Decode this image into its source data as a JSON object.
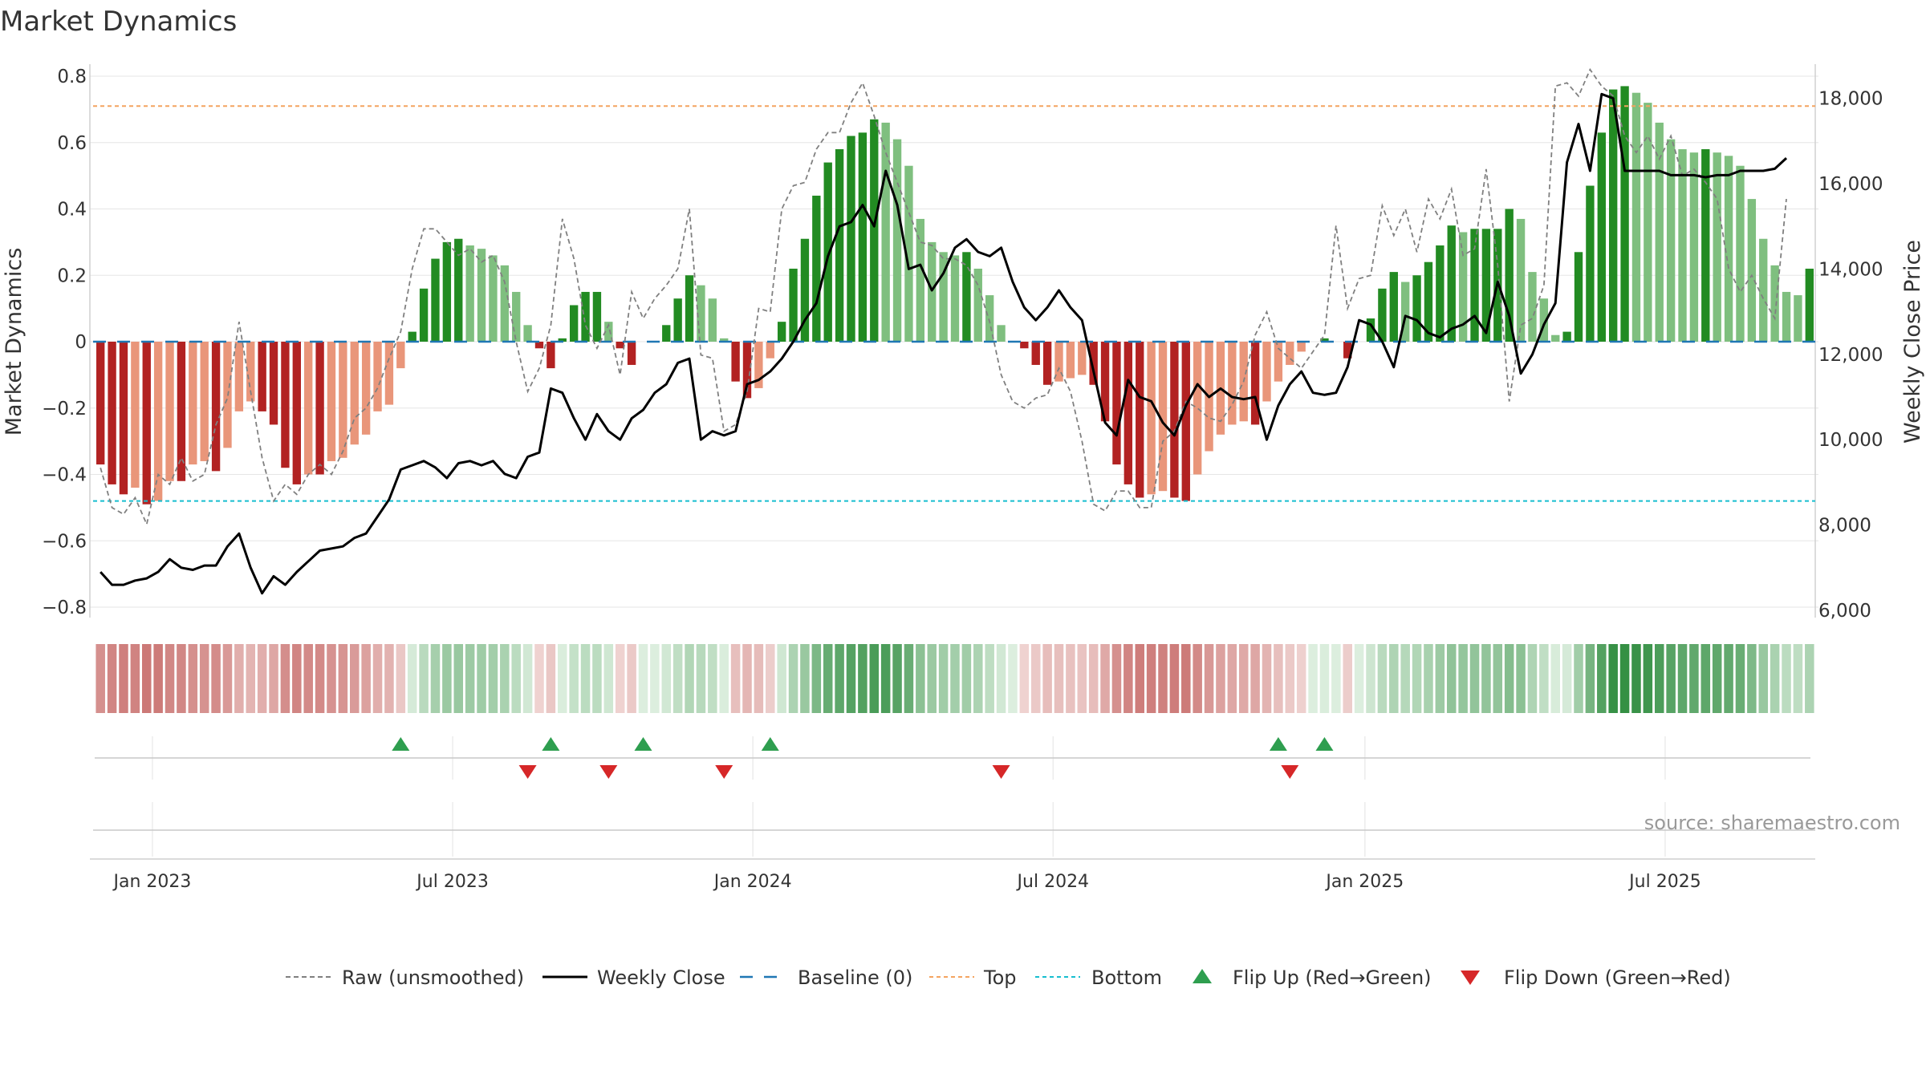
{
  "chart_data": {
    "type": "bar",
    "title": "Market Dynamics",
    "ylabel_left": "Market Dynamics",
    "ylabel_right": "Weekly Close Price",
    "source": "source: sharemaestro.com",
    "ylim_left": [
      -0.8,
      0.8
    ],
    "ylim_right": [
      6000,
      18500
    ],
    "yticks_left": [
      0.8,
      0.6,
      0.4,
      0.2,
      0,
      -0.2,
      -0.4,
      -0.6,
      -0.8
    ],
    "yticks_left_labels": [
      "0.8",
      "0.6",
      "0.4",
      "0.2",
      "0",
      "−0.2",
      "−0.4",
      "−0.6",
      "−0.8"
    ],
    "yticks_right": [
      18000,
      16000,
      14000,
      12000,
      10000,
      8000,
      6000
    ],
    "yticks_right_labels": [
      "18,000",
      "16,000",
      "14,000",
      "12,000",
      "10,000",
      "8,000",
      "6,000"
    ],
    "xticks": [
      {
        "label": "Jan 2023",
        "week": 5
      },
      {
        "label": "Jul 2023",
        "week": 31
      },
      {
        "label": "Jan 2024",
        "week": 57
      },
      {
        "label": "Jul 2024",
        "week": 83
      },
      {
        "label": "Jan 2025",
        "week": 110
      },
      {
        "label": "Jul 2025",
        "week": 136
      }
    ],
    "top_level": 0.71,
    "bottom_level": -0.48,
    "grid": true,
    "legend_position": "bottom-center",
    "colors": {
      "strong_red": "#b22222",
      "light_red": "#e9967a",
      "strong_green": "#228b22",
      "light_green": "#7fbf7f",
      "close_line": "#000000",
      "raw_line": "#808080",
      "baseline": "#1f77b4",
      "top": "#f4a460",
      "bottom": "#17becf",
      "flip_up": "#2e9e4f",
      "flip_down": "#d62728"
    },
    "series": [
      {
        "name": "Market Dynamics",
        "values": [
          -0.37,
          -0.43,
          -0.46,
          -0.44,
          -0.49,
          -0.48,
          -0.42,
          -0.42,
          -0.37,
          -0.36,
          -0.39,
          -0.32,
          -0.21,
          -0.18,
          -0.21,
          -0.25,
          -0.38,
          -0.43,
          -0.4,
          -0.4,
          -0.36,
          -0.35,
          -0.31,
          -0.28,
          -0.21,
          -0.19,
          -0.08,
          0.03,
          0.16,
          0.25,
          0.3,
          0.31,
          0.29,
          0.28,
          0.26,
          0.23,
          0.15,
          0.05,
          -0.02,
          -0.08,
          0.01,
          0.11,
          0.15,
          0.15,
          0.06,
          -0.02,
          -0.07,
          0.0,
          0.0,
          0.05,
          0.13,
          0.2,
          0.17,
          0.13,
          0.01,
          -0.12,
          -0.17,
          -0.14,
          -0.05,
          0.06,
          0.22,
          0.31,
          0.44,
          0.54,
          0.58,
          0.62,
          0.63,
          0.67,
          0.66,
          0.61,
          0.53,
          0.37,
          0.3,
          0.27,
          0.26,
          0.27,
          0.22,
          0.14,
          0.05,
          0.0,
          -0.02,
          -0.07,
          -0.13,
          -0.12,
          -0.11,
          -0.1,
          -0.13,
          -0.24,
          -0.37,
          -0.43,
          -0.47,
          -0.46,
          -0.45,
          -0.47,
          -0.48,
          -0.4,
          -0.33,
          -0.28,
          -0.25,
          -0.24,
          -0.25,
          -0.18,
          -0.12,
          -0.07,
          -0.03,
          0.0,
          0.01,
          0.0,
          -0.05,
          0.0,
          0.07,
          0.16,
          0.21,
          0.18,
          0.2,
          0.24,
          0.29,
          0.35,
          0.33,
          0.34,
          0.34,
          0.34,
          0.4,
          0.37,
          0.21,
          0.13,
          0.02,
          0.03,
          0.27,
          0.47,
          0.63,
          0.76,
          0.77,
          0.75,
          0.72,
          0.66,
          0.61,
          0.58,
          0.57,
          0.58,
          0.57,
          0.56,
          0.53,
          0.43,
          0.31,
          0.23,
          0.15,
          0.14,
          0.22
        ]
      },
      {
        "name": "Raw (unsmoothed)",
        "values": [
          -0.38,
          -0.5,
          -0.52,
          -0.47,
          -0.55,
          -0.4,
          -0.43,
          -0.35,
          -0.42,
          -0.4,
          -0.25,
          -0.17,
          0.06,
          -0.15,
          -0.35,
          -0.48,
          -0.43,
          -0.46,
          -0.4,
          -0.37,
          -0.4,
          -0.33,
          -0.23,
          -0.2,
          -0.14,
          -0.05,
          0.03,
          0.22,
          0.34,
          0.34,
          0.3,
          0.26,
          0.28,
          0.24,
          0.26,
          0.18,
          0.0,
          -0.15,
          -0.08,
          0.05,
          0.37,
          0.25,
          0.05,
          -0.02,
          0.05,
          -0.1,
          0.15,
          0.07,
          0.13,
          0.17,
          0.22,
          0.4,
          -0.04,
          -0.05,
          -0.27,
          -0.25,
          -0.15,
          0.1,
          0.09,
          0.4,
          0.47,
          0.48,
          0.58,
          0.63,
          0.63,
          0.72,
          0.78,
          0.68,
          0.57,
          0.48,
          0.39,
          0.3,
          0.29,
          0.25,
          0.25,
          0.23,
          0.17,
          0.06,
          -0.1,
          -0.18,
          -0.2,
          -0.17,
          -0.16,
          -0.08,
          -0.15,
          -0.3,
          -0.49,
          -0.51,
          -0.45,
          -0.45,
          -0.5,
          -0.5,
          -0.3,
          -0.27,
          -0.18,
          -0.2,
          -0.23,
          -0.24,
          -0.19,
          -0.12,
          0.02,
          0.09,
          -0.02,
          -0.05,
          -0.08,
          -0.03,
          0.02,
          0.35,
          0.1,
          0.19,
          0.2,
          0.41,
          0.32,
          0.4,
          0.27,
          0.43,
          0.37,
          0.46,
          0.26,
          0.28,
          0.52,
          0.23,
          -0.18,
          0.05,
          0.07,
          0.17,
          0.77,
          0.78,
          0.74,
          0.82,
          0.77,
          0.74,
          0.62,
          0.57,
          0.62,
          0.55,
          0.62,
          0.5,
          0.52,
          0.48,
          0.43,
          0.22,
          0.15,
          0.2,
          0.13,
          0.07,
          0.43
        ]
      },
      {
        "name": "Weekly Close",
        "values": [
          6900,
          6600,
          6600,
          6700,
          6750,
          6900,
          7200,
          7000,
          6950,
          7050,
          7050,
          7500,
          7800,
          7000,
          6400,
          6800,
          6600,
          6900,
          7150,
          7400,
          7450,
          7500,
          7700,
          7800,
          8200,
          8600,
          9300,
          9400,
          9500,
          9350,
          9100,
          9450,
          9500,
          9400,
          9500,
          9200,
          9100,
          9600,
          9700,
          11200,
          11100,
          10500,
          10000,
          10600,
          10200,
          10000,
          10500,
          10700,
          11100,
          11300,
          11800,
          11900,
          10000,
          10200,
          10100,
          10200,
          11300,
          11400,
          11600,
          11900,
          12300,
          12800,
          13200,
          14300,
          15000,
          15100,
          15500,
          15000,
          16300,
          15500,
          14000,
          14100,
          13500,
          13900,
          14500,
          14700,
          14400,
          14300,
          14500,
          13700,
          13100,
          12800,
          13100,
          13500,
          13100,
          12800,
          11600,
          10400,
          10100,
          11400,
          11000,
          10900,
          10400,
          10100,
          10800,
          11300,
          11000,
          11200,
          11000,
          10950,
          11000,
          10000,
          10800,
          11300,
          11600,
          11100,
          11050,
          11100,
          11700,
          12800,
          12700,
          12300,
          11700,
          12900,
          12800,
          12500,
          12400,
          12600,
          12700,
          12900,
          12500,
          13700,
          12900,
          11550,
          12000,
          12700,
          13200,
          16500,
          17400,
          16300,
          18100,
          18000,
          16300,
          16300,
          16300,
          16300,
          16200,
          16200,
          16200,
          16150,
          16200,
          16200,
          16300,
          16300,
          16300,
          16350,
          16600
        ]
      }
    ],
    "regime_bar": [
      -0.37,
      -0.43,
      -0.46,
      -0.44,
      -0.49,
      -0.48,
      -0.42,
      -0.42,
      -0.37,
      -0.36,
      -0.39,
      -0.32,
      -0.21,
      -0.18,
      -0.21,
      -0.25,
      -0.38,
      -0.43,
      -0.4,
      -0.4,
      -0.36,
      -0.35,
      -0.31,
      -0.28,
      -0.21,
      -0.19,
      -0.08,
      0.03,
      0.16,
      0.25,
      0.3,
      0.31,
      0.29,
      0.28,
      0.26,
      0.23,
      0.15,
      0.05,
      -0.02,
      -0.08,
      0.01,
      0.11,
      0.15,
      0.15,
      0.06,
      -0.02,
      -0.07,
      0.0,
      0.0,
      0.05,
      0.13,
      0.2,
      0.17,
      0.13,
      0.01,
      -0.12,
      -0.17,
      -0.14,
      -0.05,
      0.06,
      0.22,
      0.31,
      0.44,
      0.54,
      0.58,
      0.62,
      0.63,
      0.67,
      0.66,
      0.61,
      0.53,
      0.37,
      0.3,
      0.27,
      0.26,
      0.27,
      0.22,
      0.14,
      0.05,
      0.0,
      -0.02,
      -0.07,
      -0.13,
      -0.12,
      -0.11,
      -0.1,
      -0.13,
      -0.24,
      -0.37,
      -0.43,
      -0.47,
      -0.46,
      -0.45,
      -0.47,
      -0.48,
      -0.4,
      -0.33,
      -0.28,
      -0.25,
      -0.24,
      -0.25,
      -0.18,
      -0.12,
      -0.07,
      -0.03,
      0.0,
      0.01,
      0.0,
      -0.05,
      0.0,
      0.07,
      0.16,
      0.21,
      0.18,
      0.2,
      0.24,
      0.29,
      0.35,
      0.33,
      0.34,
      0.34,
      0.34,
      0.4,
      0.37,
      0.21,
      0.13,
      0.02,
      0.03,
      0.27,
      0.47,
      0.63,
      0.76,
      0.77,
      0.75,
      0.72,
      0.66,
      0.61,
      0.58,
      0.57,
      0.58,
      0.57,
      0.56,
      0.53,
      0.43,
      0.31,
      0.23,
      0.15,
      0.14,
      0.22
    ],
    "flip_up_weeks": [
      26,
      39,
      47,
      58,
      102,
      106
    ],
    "flip_down_weeks": [
      37,
      44,
      54,
      78,
      103
    ],
    "legend": [
      {
        "label": "Raw (unsmoothed)",
        "style": "dashed-gray"
      },
      {
        "label": "Weekly Close",
        "style": "solid-black"
      },
      {
        "label": "Baseline (0)",
        "style": "dashed-blue"
      },
      {
        "label": "Top",
        "style": "dotted-orange"
      },
      {
        "label": "Bottom",
        "style": "dotted-cyan"
      },
      {
        "label": "Flip Up (Red→Green)",
        "style": "triangle-up-green"
      },
      {
        "label": "Flip Down (Green→Red)",
        "style": "triangle-down-red"
      }
    ]
  }
}
